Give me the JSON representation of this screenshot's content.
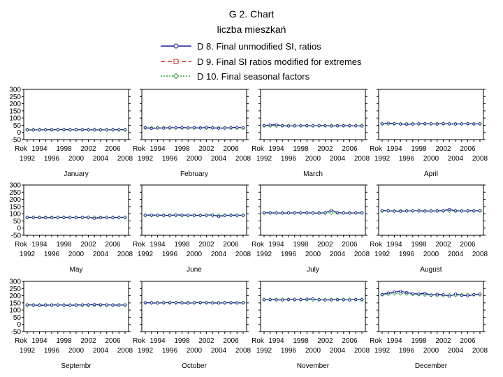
{
  "chart_data": {
    "type": "line",
    "title": "G 2. Chart",
    "subtitle": "liczba mieszkań",
    "legend": {
      "placement": "top",
      "entries": [
        {
          "label": "D 8. Final unmodified SI, ratios",
          "color": "#1a1aa6",
          "marker": "circle",
          "dash": "solid"
        },
        {
          "label": "D 9. Final SI ratios modified for extremes",
          "color": "#d42020",
          "marker": "square",
          "dash": "dashed"
        },
        {
          "label": "D 10. Final seasonal factors",
          "color": "#2e9a2e",
          "marker": "diamond",
          "dash": "dotted"
        }
      ]
    },
    "grid": false,
    "ylim": [
      -50,
      300
    ],
    "y_ticks": [
      "300",
      "250",
      "200",
      "150",
      "100",
      "50",
      "0",
      "-50"
    ],
    "x_label": "Rok",
    "x_ticks_top": [
      "1994",
      "1998",
      "2002",
      "2006"
    ],
    "x_ticks_bottom": [
      "1992",
      "1996",
      "2000",
      "2004",
      "2008"
    ],
    "x": [
      1992,
      1993,
      1994,
      1995,
      1996,
      1997,
      1998,
      1999,
      2000,
      2001,
      2002,
      2003,
      2004,
      2005,
      2006,
      2007,
      2008
    ],
    "panels": [
      {
        "label": "January",
        "d8": [
          18,
          17,
          19,
          18,
          20,
          19,
          21,
          19,
          18,
          20,
          19,
          18,
          17,
          19,
          18,
          20,
          19
        ],
        "d10": [
          19,
          19,
          19,
          19,
          19,
          19,
          19,
          19,
          19,
          19,
          19,
          19,
          19,
          19,
          19,
          19,
          19
        ]
      },
      {
        "label": "February",
        "d8": [
          33,
          28,
          31,
          30,
          34,
          32,
          35,
          31,
          33,
          30,
          36,
          32,
          29,
          31,
          33,
          35,
          32
        ],
        "d10": [
          32,
          32,
          32,
          32,
          32,
          32,
          32,
          32,
          32,
          32,
          32,
          32,
          32,
          32,
          32,
          32,
          32
        ]
      },
      {
        "label": "March",
        "d8": [
          47,
          52,
          54,
          47,
          45,
          46,
          48,
          47,
          46,
          49,
          47,
          45,
          46,
          47,
          48,
          46,
          45
        ],
        "d10": [
          47,
          47,
          47,
          47,
          47,
          47,
          47,
          47,
          47,
          47,
          47,
          47,
          47,
          47,
          47,
          47,
          47
        ]
      },
      {
        "label": "April",
        "d8": [
          60,
          65,
          62,
          58,
          56,
          58,
          60,
          61,
          60,
          59,
          62,
          60,
          58,
          60,
          61,
          59,
          60
        ],
        "d10": [
          60,
          60,
          60,
          60,
          60,
          60,
          60,
          60,
          60,
          60,
          60,
          60,
          60,
          60,
          60,
          60,
          60
        ]
      },
      {
        "label": "May",
        "d8": [
          75,
          74,
          73,
          72,
          72,
          74,
          75,
          74,
          73,
          75,
          76,
          68,
          72,
          74,
          73,
          74,
          75
        ],
        "d10": [
          74,
          74,
          74,
          74,
          74,
          74,
          74,
          74,
          74,
          74,
          74,
          74,
          74,
          74,
          74,
          74,
          74
        ]
      },
      {
        "label": "June",
        "d8": [
          90,
          91,
          90,
          89,
          88,
          92,
          91,
          90,
          89,
          88,
          90,
          92,
          81,
          88,
          89,
          90,
          88
        ],
        "d10": [
          89,
          89,
          89,
          89,
          89,
          89,
          89,
          89,
          89,
          89,
          89,
          89,
          89,
          89,
          89,
          89,
          89
        ]
      },
      {
        "label": "July",
        "d8": [
          108,
          106,
          105,
          104,
          105,
          106,
          107,
          106,
          105,
          104,
          106,
          125,
          108,
          105,
          104,
          106,
          105
        ],
        "d10": [
          106,
          106,
          106,
          106,
          106,
          106,
          106,
          106,
          106,
          106,
          106,
          106,
          106,
          106,
          106,
          106,
          106
        ]
      },
      {
        "label": "August",
        "d8": [
          122,
          120,
          118,
          117,
          119,
          121,
          120,
          118,
          119,
          120,
          122,
          130,
          121,
          119,
          120,
          121,
          120
        ],
        "d10": [
          120,
          120,
          120,
          120,
          120,
          120,
          120,
          120,
          120,
          120,
          120,
          120,
          120,
          120,
          120,
          120,
          120
        ]
      },
      {
        "label": "Septembr",
        "d8": [
          136,
          135,
          133,
          134,
          135,
          136,
          134,
          133,
          135,
          136,
          137,
          139,
          138,
          136,
          135,
          134,
          136
        ],
        "d10": [
          135,
          135,
          135,
          135,
          135,
          135,
          135,
          135,
          135,
          135,
          135,
          135,
          135,
          135,
          135,
          135,
          135
        ]
      },
      {
        "label": "October",
        "d8": [
          152,
          150,
          149,
          151,
          153,
          152,
          150,
          148,
          151,
          153,
          152,
          150,
          149,
          151,
          152,
          150,
          151
        ],
        "d10": [
          151,
          151,
          151,
          151,
          151,
          151,
          151,
          151,
          151,
          151,
          151,
          151,
          151,
          151,
          151,
          151,
          151
        ]
      },
      {
        "label": "November",
        "d8": [
          172,
          173,
          171,
          170,
          174,
          175,
          173,
          176,
          178,
          172,
          170,
          171,
          173,
          172,
          170,
          174,
          173
        ],
        "d10": [
          173,
          173,
          173,
          173,
          173,
          173,
          173,
          173,
          173,
          173,
          173,
          173,
          173,
          173,
          173,
          173,
          173
        ]
      },
      {
        "label": "December",
        "d8": [
          208,
          220,
          226,
          231,
          222,
          215,
          212,
          218,
          204,
          210,
          207,
          196,
          212,
          203,
          199,
          207,
          212
        ],
        "d10": [
          208,
          212,
          215,
          216,
          214,
          211,
          209,
          207,
          205,
          204,
          203,
          203,
          204,
          205,
          206,
          207,
          208
        ]
      }
    ]
  }
}
